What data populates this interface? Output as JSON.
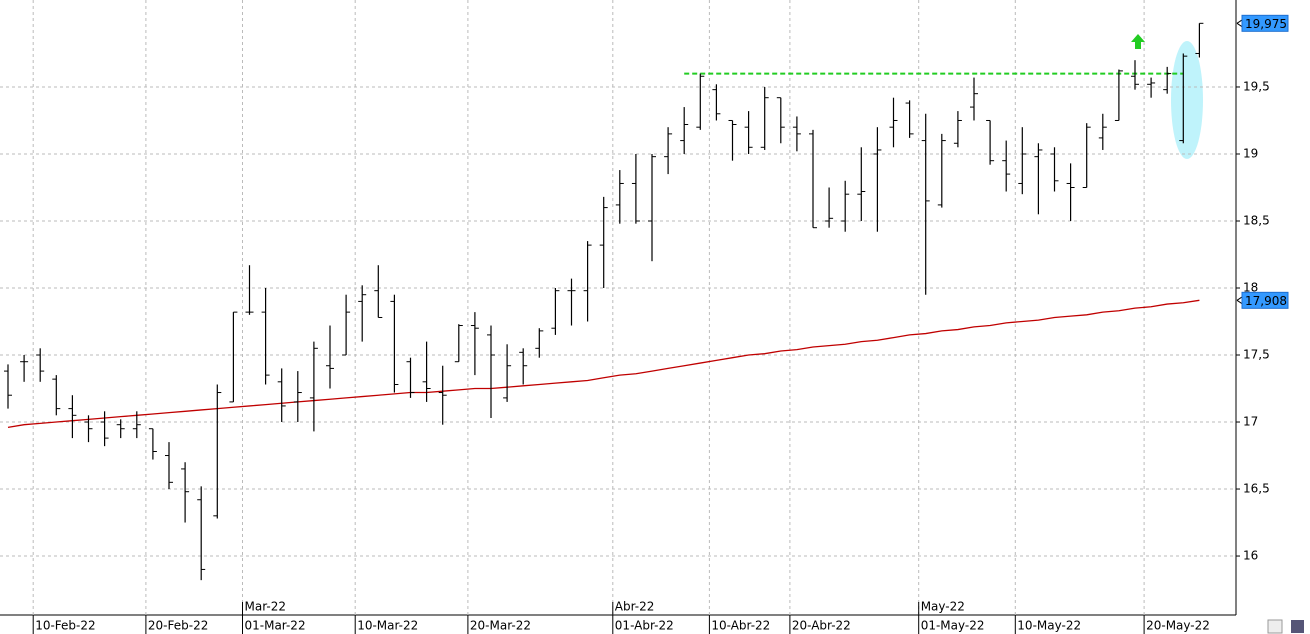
{
  "chart_data": {
    "type": "ohlc",
    "categories": [
      null,
      null,
      "10-Feb-22",
      null,
      null,
      null,
      null,
      null,
      null,
      "20-Feb-22",
      null,
      null,
      null,
      null,
      null,
      "01-Mar-22",
      null,
      null,
      null,
      null,
      null,
      null,
      "10-Mar-22",
      null,
      null,
      null,
      null,
      null,
      null,
      "20-Mar-22",
      null,
      null,
      null,
      null,
      null,
      null,
      null,
      null,
      "01-Abr-22",
      null,
      null,
      null,
      null,
      null,
      "10-Abr-22",
      null,
      null,
      null,
      null,
      "20-Abr-22",
      null,
      null,
      null,
      null,
      null,
      null,
      null,
      "01-May-22",
      null,
      null,
      null,
      null,
      null,
      "10-May-22",
      null,
      null,
      null,
      null,
      null,
      null,
      null,
      "20-May-22",
      null,
      null,
      null
    ],
    "months": [
      "Mar-22",
      "Abr-22",
      "May-22"
    ],
    "open": [
      17.38,
      17.45,
      17.5,
      17.32,
      17.1,
      17.0,
      17.0,
      16.98,
      16.95,
      16.95,
      16.75,
      16.65,
      16.42,
      16.3,
      17.15,
      17.82,
      17.82,
      17.3,
      17.15,
      17.18,
      17.42,
      17.5,
      17.9,
      17.98,
      17.9,
      17.45,
      17.3,
      17.22,
      17.45,
      17.72,
      17.65,
      17.18,
      17.52,
      17.55,
      17.7,
      17.98,
      17.98,
      18.32,
      18.62,
      18.78,
      18.5,
      18.98,
      19.1,
      19.2,
      19.48,
      19.25,
      19.2,
      19.05,
      19.42,
      19.2,
      19.15,
      18.5,
      18.5,
      18.7,
      19.0,
      19.2,
      19.38,
      19.1,
      18.62,
      19.08,
      19.35,
      19.25,
      18.95,
      18.78,
      18.98,
      19.0,
      18.78,
      18.75,
      19.12,
      19.25,
      19.58,
      19.52,
      19.48,
      19.1,
      19.75
    ],
    "high": [
      17.43,
      17.5,
      17.55,
      17.35,
      17.2,
      17.05,
      17.08,
      17.02,
      17.08,
      16.95,
      16.85,
      16.7,
      16.52,
      17.28,
      17.82,
      18.17,
      18.0,
      17.4,
      17.38,
      17.6,
      17.72,
      17.95,
      18.02,
      18.17,
      17.95,
      17.48,
      17.6,
      17.42,
      17.73,
      17.82,
      17.72,
      17.58,
      17.55,
      17.7,
      18.0,
      18.07,
      18.35,
      18.68,
      18.88,
      19.0,
      19.0,
      19.2,
      19.35,
      19.6,
      19.52,
      19.25,
      19.32,
      19.5,
      19.42,
      19.28,
      19.18,
      18.75,
      18.8,
      19.05,
      19.2,
      19.42,
      19.4,
      19.3,
      19.15,
      19.32,
      19.57,
      19.25,
      19.1,
      19.2,
      19.08,
      19.05,
      18.93,
      19.23,
      19.3,
      19.63,
      19.7,
      19.57,
      19.65,
      19.75,
      19.975
    ],
    "low": [
      17.1,
      17.3,
      17.3,
      17.05,
      16.88,
      16.85,
      16.82,
      16.88,
      16.88,
      16.72,
      16.5,
      16.25,
      15.82,
      16.28,
      17.15,
      17.8,
      17.28,
      17.0,
      17.0,
      16.93,
      17.25,
      17.5,
      17.6,
      17.78,
      17.22,
      17.18,
      17.15,
      16.98,
      17.45,
      17.35,
      17.03,
      17.15,
      17.28,
      17.48,
      17.65,
      17.72,
      17.75,
      18.0,
      18.48,
      18.48,
      18.2,
      18.85,
      19.0,
      19.18,
      19.25,
      18.95,
      19.0,
      19.03,
      19.08,
      19.02,
      18.45,
      18.45,
      18.42,
      18.5,
      18.42,
      19.05,
      19.12,
      17.95,
      18.6,
      19.05,
      19.25,
      18.92,
      18.72,
      18.7,
      18.55,
      18.72,
      18.5,
      18.75,
      19.03,
      19.25,
      19.48,
      19.42,
      19.45,
      19.08,
      19.72
    ],
    "close": [
      17.2,
      17.45,
      17.38,
      17.1,
      17.05,
      16.95,
      16.88,
      16.95,
      16.98,
      16.78,
      16.55,
      16.48,
      15.9,
      17.22,
      17.82,
      17.82,
      17.35,
      17.12,
      17.22,
      17.55,
      17.4,
      17.82,
      17.95,
      17.78,
      17.28,
      17.22,
      17.25,
      17.2,
      17.72,
      17.7,
      17.5,
      17.42,
      17.42,
      17.68,
      17.98,
      17.98,
      18.32,
      18.6,
      18.78,
      18.5,
      18.98,
      19.15,
      19.22,
      19.58,
      19.3,
      19.22,
      19.05,
      19.42,
      19.2,
      19.15,
      18.45,
      18.52,
      18.7,
      18.72,
      19.03,
      19.25,
      19.15,
      18.65,
      19.1,
      19.25,
      19.45,
      18.95,
      18.85,
      19.0,
      19.03,
      18.8,
      18.75,
      19.2,
      19.2,
      19.62,
      19.52,
      19.53,
      19.6,
      19.73,
      19.975
    ],
    "moving_average": {
      "color": "#c00000",
      "values": [
        16.96,
        16.98,
        16.99,
        17.0,
        17.01,
        17.02,
        17.03,
        17.04,
        17.05,
        17.06,
        17.07,
        17.08,
        17.09,
        17.1,
        17.11,
        17.12,
        17.13,
        17.14,
        17.15,
        17.16,
        17.17,
        17.18,
        17.19,
        17.2,
        17.21,
        17.22,
        17.22,
        17.23,
        17.24,
        17.25,
        17.25,
        17.26,
        17.27,
        17.28,
        17.29,
        17.3,
        17.31,
        17.33,
        17.35,
        17.36,
        17.38,
        17.4,
        17.42,
        17.44,
        17.46,
        17.48,
        17.5,
        17.51,
        17.53,
        17.54,
        17.56,
        17.57,
        17.58,
        17.6,
        17.61,
        17.63,
        17.65,
        17.66,
        17.68,
        17.69,
        17.71,
        17.72,
        17.74,
        17.75,
        17.76,
        17.78,
        17.79,
        17.8,
        17.82,
        17.83,
        17.85,
        17.86,
        17.88,
        17.89,
        17.908
      ]
    },
    "resistance": {
      "value": 19.6,
      "color": "#22cc22",
      "from": 42,
      "to": 73
    },
    "last_price": {
      "value": 19.975,
      "label": "19,975"
    },
    "ma_last": {
      "value": 17.908,
      "label": "17,908"
    },
    "ylim": [
      15.56,
      20.149
    ],
    "yticks": [
      {
        "value": 16,
        "label": "16"
      },
      {
        "value": 16.5,
        "label": "16,5"
      },
      {
        "value": 17,
        "label": "17"
      },
      {
        "value": 17.5,
        "label": "17,5"
      },
      {
        "value": 18,
        "label": "18"
      },
      {
        "value": 18.5,
        "label": "18,5"
      },
      {
        "value": 19,
        "label": "19"
      },
      {
        "value": 19.5,
        "label": "19,5"
      }
    ],
    "grid": true
  }
}
